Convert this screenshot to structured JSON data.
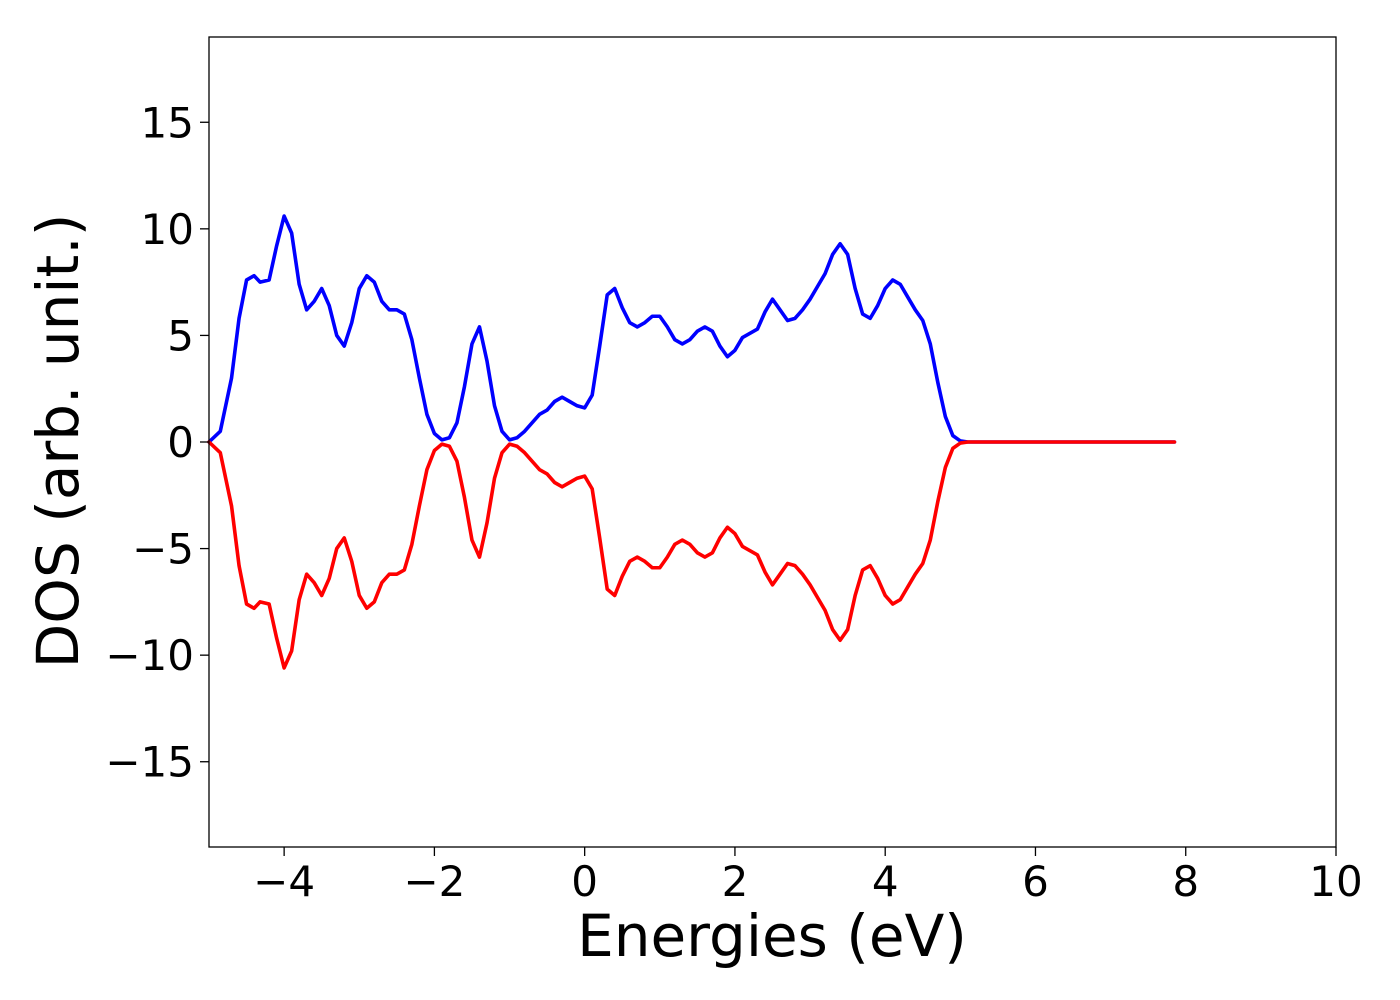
{
  "chart_data": {
    "type": "line",
    "title": "",
    "xlabel": "Energies (eV)",
    "ylabel": "DOS (arb. unit.)",
    "xlim": [
      -5,
      10
    ],
    "ylim": [
      -19,
      19
    ],
    "x_ticks": [
      -4,
      -2,
      0,
      2,
      4,
      6,
      8,
      10
    ],
    "x_tick_labels": [
      "−4",
      "−2",
      "0",
      "2",
      "4",
      "6",
      "8",
      "10"
    ],
    "y_ticks": [
      15,
      10,
      5,
      0,
      -5,
      -10,
      -15
    ],
    "y_tick_labels": [
      "15",
      "10",
      "5",
      "0",
      "−5",
      "−10",
      "−15"
    ],
    "grid": false,
    "legend": "none",
    "series": [
      {
        "color": "#0000ff",
        "x": [
          -5.0,
          -4.85,
          -4.7,
          -4.6,
          -4.5,
          -4.4,
          -4.32,
          -4.2,
          -4.1,
          -4.0,
          -3.9,
          -3.8,
          -3.7,
          -3.6,
          -3.5,
          -3.4,
          -3.3,
          -3.2,
          -3.1,
          -3.0,
          -2.9,
          -2.8,
          -2.7,
          -2.6,
          -2.5,
          -2.4,
          -2.3,
          -2.2,
          -2.1,
          -2.0,
          -1.9,
          -1.8,
          -1.7,
          -1.6,
          -1.5,
          -1.4,
          -1.3,
          -1.2,
          -1.1,
          -1.0,
          -0.9,
          -0.8,
          -0.7,
          -0.6,
          -0.5,
          -0.4,
          -0.3,
          -0.2,
          -0.1,
          0.0,
          0.1,
          0.2,
          0.3,
          0.4,
          0.5,
          0.6,
          0.7,
          0.8,
          0.9,
          1.0,
          1.1,
          1.2,
          1.3,
          1.4,
          1.5,
          1.6,
          1.7,
          1.8,
          1.9,
          2.0,
          2.1,
          2.2,
          2.3,
          2.4,
          2.5,
          2.6,
          2.7,
          2.8,
          2.9,
          3.0,
          3.1,
          3.2,
          3.3,
          3.4,
          3.5,
          3.6,
          3.7,
          3.8,
          3.9,
          4.0,
          4.1,
          4.2,
          4.3,
          4.4,
          4.5,
          4.6,
          4.7,
          4.8,
          4.9,
          5.0,
          5.1,
          5.2,
          5.3,
          5.4,
          5.5,
          5.6,
          5.7,
          5.8,
          6.0,
          7.0,
          7.85
        ],
        "y": [
          0.0,
          0.5,
          3.0,
          5.8,
          7.6,
          7.8,
          7.5,
          7.6,
          9.2,
          10.6,
          9.8,
          7.4,
          6.2,
          6.6,
          7.2,
          6.4,
          5.0,
          4.5,
          5.6,
          7.2,
          7.8,
          7.5,
          6.6,
          6.2,
          6.2,
          6.0,
          4.8,
          3.0,
          1.3,
          0.4,
          0.1,
          0.2,
          0.9,
          2.6,
          4.6,
          5.4,
          3.8,
          1.7,
          0.5,
          0.1,
          0.2,
          0.5,
          0.9,
          1.3,
          1.5,
          1.9,
          2.1,
          1.9,
          1.7,
          1.6,
          2.2,
          4.5,
          6.9,
          7.2,
          6.3,
          5.6,
          5.4,
          5.6,
          5.9,
          5.9,
          5.4,
          4.8,
          4.6,
          4.8,
          5.2,
          5.4,
          5.2,
          4.5,
          4.0,
          4.3,
          4.9,
          5.1,
          5.3,
          6.1,
          6.7,
          6.2,
          5.7,
          5.8,
          6.2,
          6.7,
          7.3,
          7.9,
          8.8,
          9.3,
          8.8,
          7.2,
          6.0,
          5.8,
          6.4,
          7.2,
          7.6,
          7.4,
          6.8,
          6.2,
          5.7,
          4.6,
          2.8,
          1.2,
          0.3,
          0.05,
          0.0,
          0.0,
          0.0,
          0.0,
          0.0,
          0.0,
          0.0,
          0.0,
          0.0,
          0.0,
          0.0
        ]
      },
      {
        "color": "#ff0000",
        "x": [
          -5.0,
          -4.85,
          -4.7,
          -4.6,
          -4.5,
          -4.4,
          -4.32,
          -4.2,
          -4.1,
          -4.0,
          -3.9,
          -3.8,
          -3.7,
          -3.6,
          -3.5,
          -3.4,
          -3.3,
          -3.2,
          -3.1,
          -3.0,
          -2.9,
          -2.8,
          -2.7,
          -2.6,
          -2.5,
          -2.4,
          -2.3,
          -2.2,
          -2.1,
          -2.0,
          -1.9,
          -1.8,
          -1.7,
          -1.6,
          -1.5,
          -1.4,
          -1.3,
          -1.2,
          -1.1,
          -1.0,
          -0.9,
          -0.8,
          -0.7,
          -0.6,
          -0.5,
          -0.4,
          -0.3,
          -0.2,
          -0.1,
          0.0,
          0.1,
          0.2,
          0.3,
          0.4,
          0.5,
          0.6,
          0.7,
          0.8,
          0.9,
          1.0,
          1.1,
          1.2,
          1.3,
          1.4,
          1.5,
          1.6,
          1.7,
          1.8,
          1.9,
          2.0,
          2.1,
          2.2,
          2.3,
          2.4,
          2.5,
          2.6,
          2.7,
          2.8,
          2.9,
          3.0,
          3.1,
          3.2,
          3.3,
          3.4,
          3.5,
          3.6,
          3.7,
          3.8,
          3.9,
          4.0,
          4.1,
          4.2,
          4.3,
          4.4,
          4.5,
          4.6,
          4.7,
          4.8,
          4.9,
          5.0,
          5.1,
          5.2,
          5.3,
          5.4,
          5.5,
          5.6,
          5.7,
          5.8,
          6.0,
          7.0,
          7.85
        ],
        "y": [
          0.0,
          -0.5,
          -3.0,
          -5.8,
          -7.6,
          -7.8,
          -7.5,
          -7.6,
          -9.2,
          -10.6,
          -9.8,
          -7.4,
          -6.2,
          -6.6,
          -7.2,
          -6.4,
          -5.0,
          -4.5,
          -5.6,
          -7.2,
          -7.8,
          -7.5,
          -6.6,
          -6.2,
          -6.2,
          -6.0,
          -4.8,
          -3.0,
          -1.3,
          -0.4,
          -0.1,
          -0.2,
          -0.9,
          -2.6,
          -4.6,
          -5.4,
          -3.8,
          -1.7,
          -0.5,
          -0.1,
          -0.2,
          -0.5,
          -0.9,
          -1.3,
          -1.5,
          -1.9,
          -2.1,
          -1.9,
          -1.7,
          -1.6,
          -2.2,
          -4.5,
          -6.9,
          -7.2,
          -6.3,
          -5.6,
          -5.4,
          -5.6,
          -5.9,
          -5.9,
          -5.4,
          -4.8,
          -4.6,
          -4.8,
          -5.2,
          -5.4,
          -5.2,
          -4.5,
          -4.0,
          -4.3,
          -4.9,
          -5.1,
          -5.3,
          -6.1,
          -6.7,
          -6.2,
          -5.7,
          -5.8,
          -6.2,
          -6.7,
          -7.3,
          -7.9,
          -8.8,
          -9.3,
          -8.8,
          -7.2,
          -6.0,
          -5.8,
          -6.4,
          -7.2,
          -7.6,
          -7.4,
          -6.8,
          -6.2,
          -5.7,
          -4.6,
          -2.8,
          -1.2,
          -0.3,
          -0.05,
          0.0,
          0.0,
          0.0,
          0.0,
          0.0,
          0.0,
          0.0,
          0.0,
          0.0,
          0.0,
          0.0
        ]
      }
    ]
  }
}
